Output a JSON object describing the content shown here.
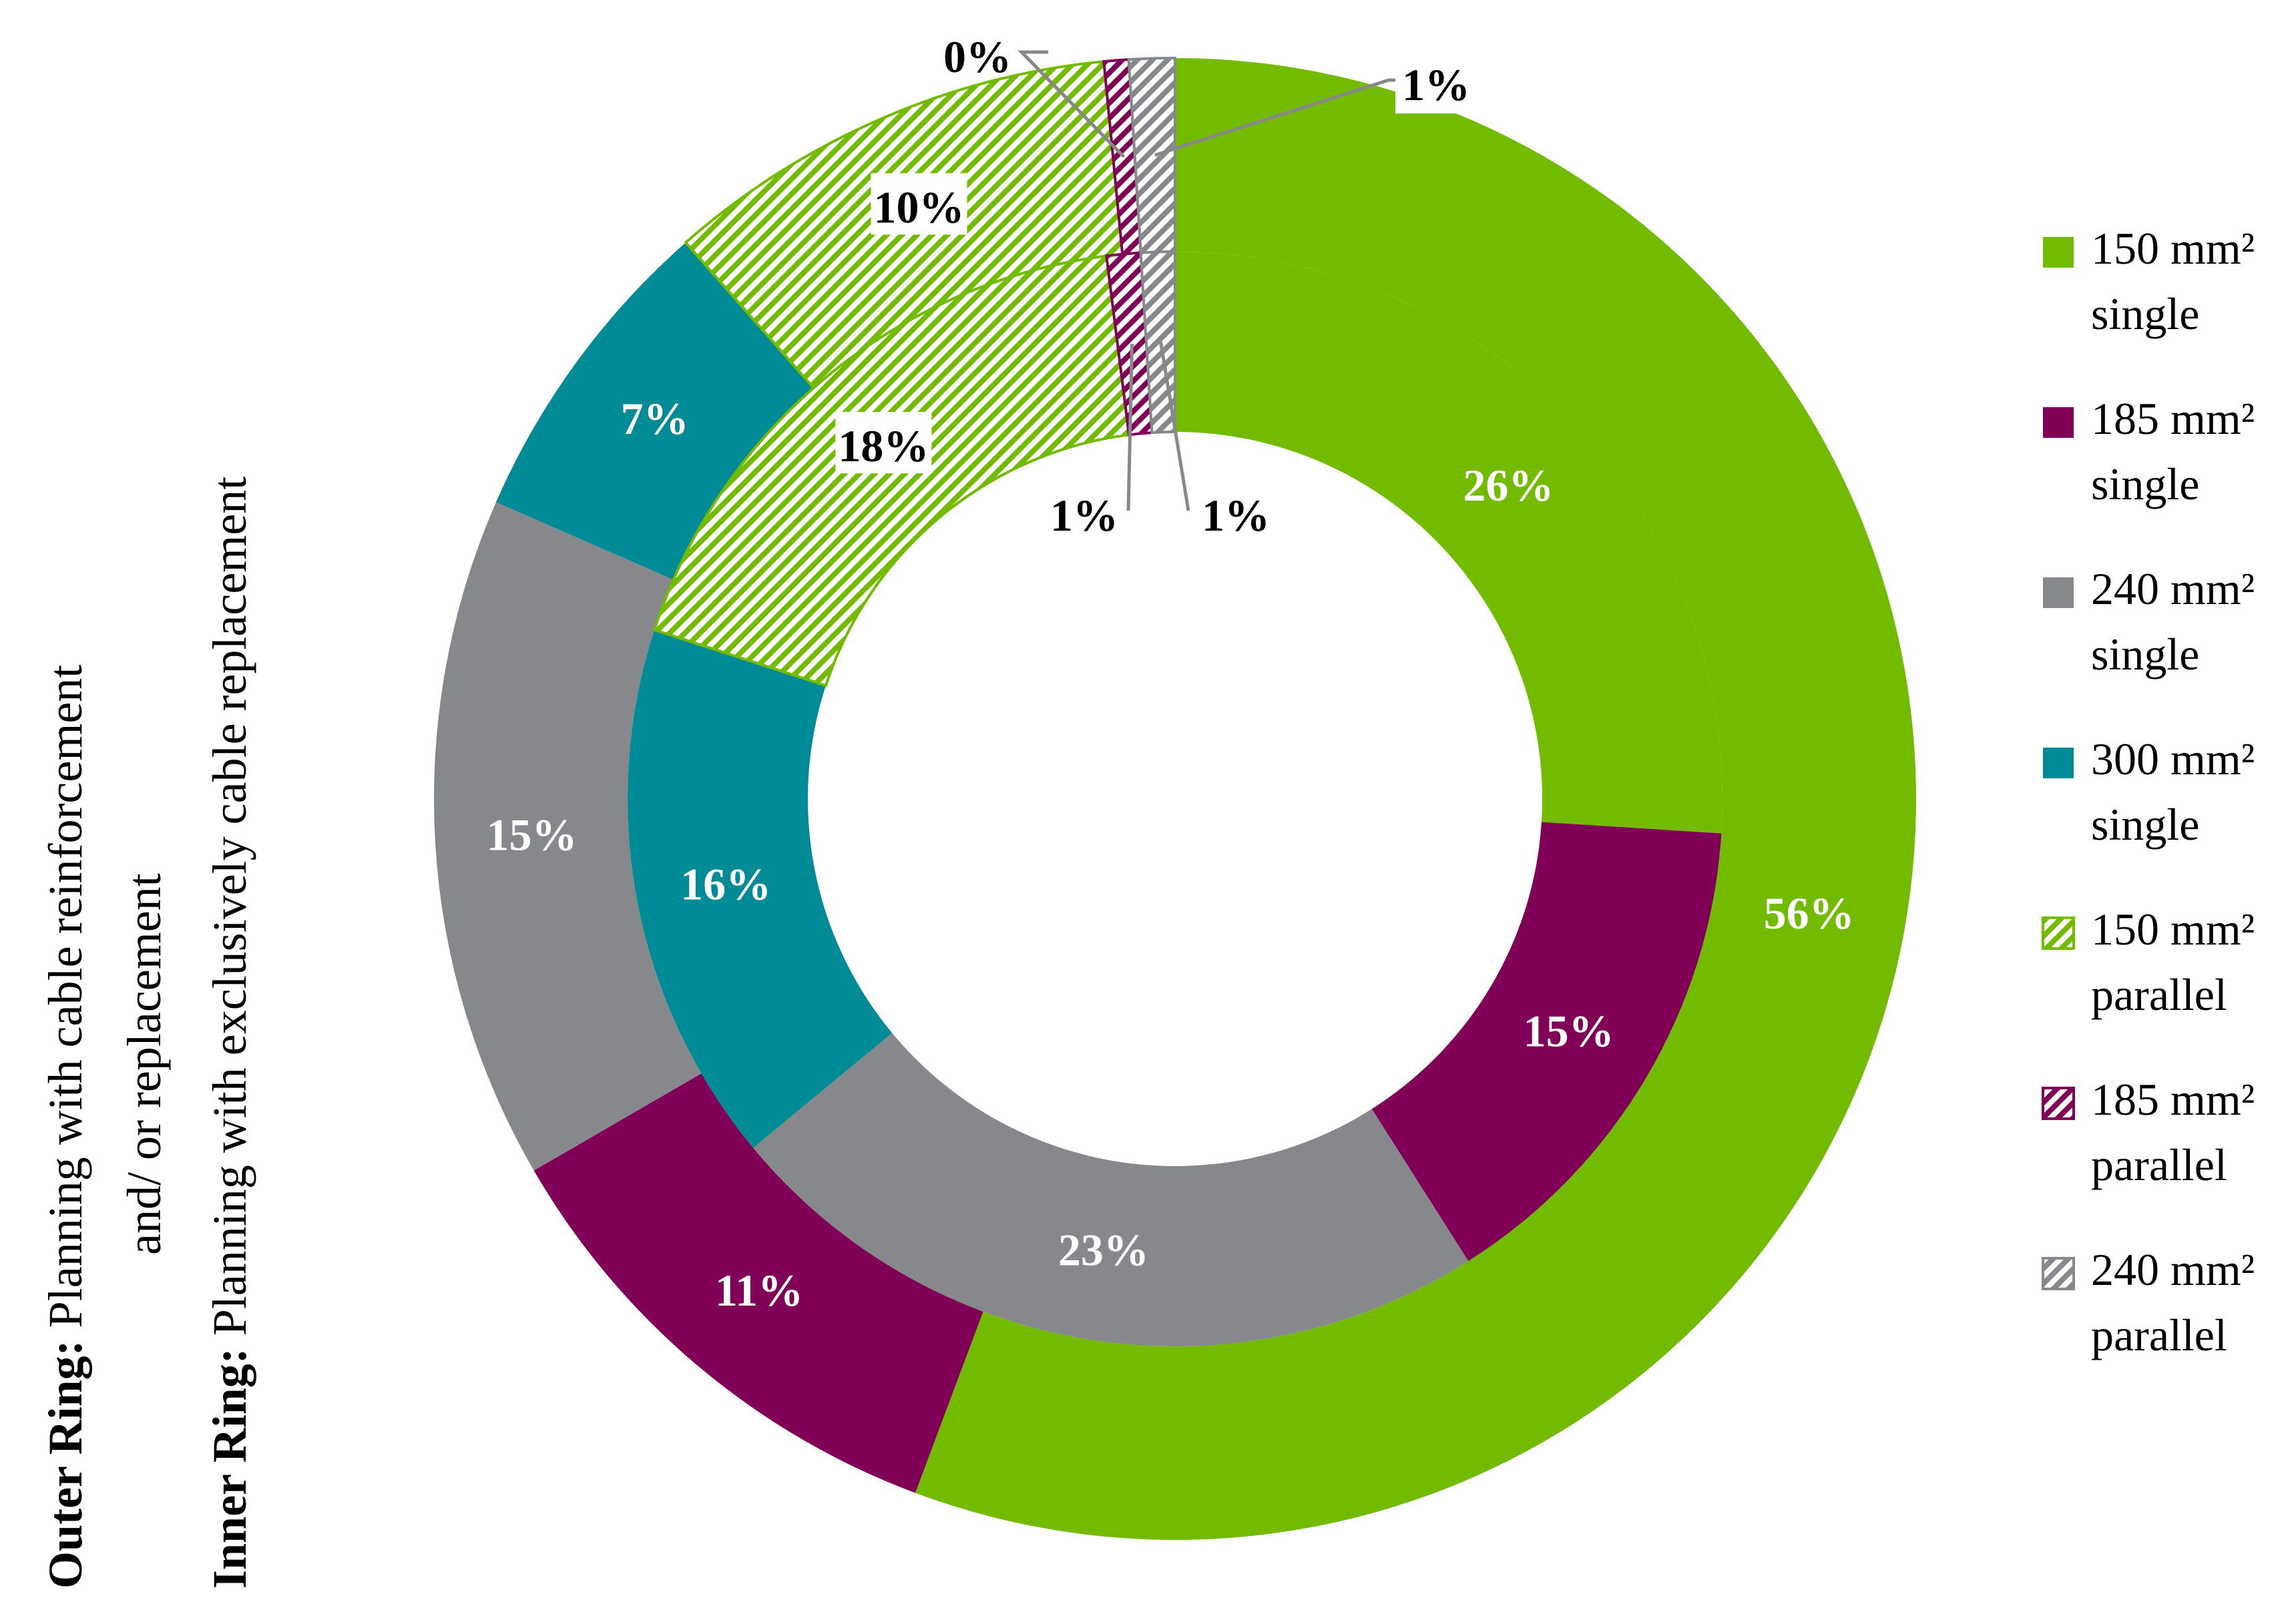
{
  "chart_data": {
    "type": "pie",
    "variant": "nested-donut",
    "title": "",
    "side_title": {
      "outer_prefix": "Outer Ring:",
      "outer_text_line1": " Planning with cable reinforcement",
      "outer_text_line2": "and/ or replacement",
      "inner_prefix": "Inner Ring:",
      "inner_text": " Planning with exclusively cable replacement"
    },
    "categories": [
      "150 mm² single",
      "185 mm² single",
      "240 mm² single",
      "300 mm² single",
      "150 mm² parallel",
      "185 mm² parallel",
      "240 mm² parallel"
    ],
    "legend": [
      {
        "line1": "150 mm²",
        "line2": "single",
        "color": "#72BB00",
        "pattern": "solid"
      },
      {
        "line1": "185 mm²",
        "line2": "single",
        "color": "#800057",
        "pattern": "solid"
      },
      {
        "line1": "240 mm²",
        "line2": "single",
        "color": "#87888C",
        "pattern": "solid"
      },
      {
        "line1": "300 mm²",
        "line2": "single",
        "color": "#008B96",
        "pattern": "solid"
      },
      {
        "line1": "150 mm²",
        "line2": "parallel",
        "color": "#72BB00",
        "pattern": "hatched"
      },
      {
        "line1": "185 mm²",
        "line2": "parallel",
        "color": "#800057",
        "pattern": "hatched"
      },
      {
        "line1": "240 mm²",
        "line2": "parallel",
        "color": "#87888C",
        "pattern": "hatched"
      }
    ],
    "series": [
      {
        "ring": "outer",
        "values": [
          56,
          11,
          15,
          7,
          10,
          0,
          1
        ],
        "labels": [
          "56%",
          "11%",
          "15%",
          "7%",
          "10%",
          "0%",
          "1%"
        ]
      },
      {
        "ring": "inner",
        "values": [
          26,
          15,
          23,
          16,
          18,
          1,
          1
        ],
        "labels": [
          "26%",
          "15%",
          "23%",
          "16%",
          "18%",
          "1%",
          "1%"
        ]
      }
    ],
    "legend_position": "right"
  }
}
